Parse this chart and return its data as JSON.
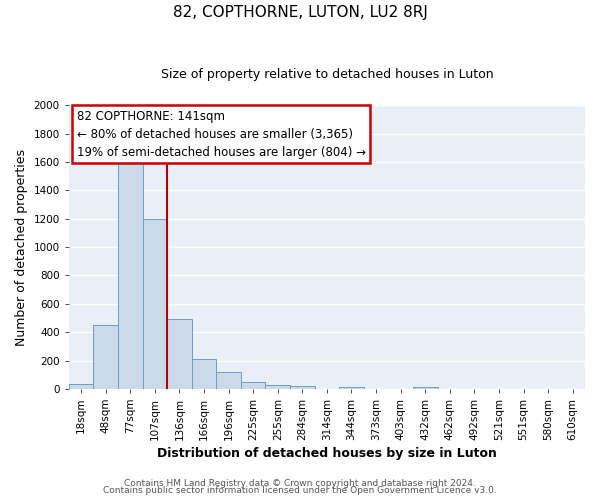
{
  "title": "82, COPTHORNE, LUTON, LU2 8RJ",
  "subtitle": "Size of property relative to detached houses in Luton",
  "xlabel": "Distribution of detached houses by size in Luton",
  "ylabel": "Number of detached properties",
  "bin_labels": [
    "18sqm",
    "48sqm",
    "77sqm",
    "107sqm",
    "136sqm",
    "166sqm",
    "196sqm",
    "225sqm",
    "255sqm",
    "284sqm",
    "314sqm",
    "344sqm",
    "373sqm",
    "403sqm",
    "432sqm",
    "462sqm",
    "492sqm",
    "521sqm",
    "551sqm",
    "580sqm",
    "610sqm"
  ],
  "bar_values": [
    35,
    450,
    1600,
    1200,
    490,
    210,
    120,
    50,
    25,
    20,
    0,
    15,
    0,
    0,
    10,
    0,
    0,
    0,
    0,
    0,
    0
  ],
  "bar_color": "#ccd9e8",
  "bar_edge_color": "#6a9fc0",
  "ylim": [
    0,
    2000
  ],
  "yticks": [
    0,
    200,
    400,
    600,
    800,
    1000,
    1200,
    1400,
    1600,
    1800,
    2000
  ],
  "vline_x": 4,
  "vline_color": "#aa0000",
  "annotation_title": "82 COPTHORNE: 141sqm",
  "annotation_line1": "← 80% of detached houses are smaller (3,365)",
  "annotation_line2": "19% of semi-detached houses are larger (804) →",
  "footer1": "Contains HM Land Registry data © Crown copyright and database right 2024.",
  "footer2": "Contains public sector information licensed under the Open Government Licence v3.0.",
  "fig_background": "#ffffff",
  "plot_background": "#e8eff6",
  "grid_color": "#ffffff",
  "title_fontsize": 11,
  "subtitle_fontsize": 9,
  "axis_label_fontsize": 9,
  "tick_fontsize": 7.5,
  "annotation_fontsize": 8.5,
  "footer_fontsize": 6.5
}
